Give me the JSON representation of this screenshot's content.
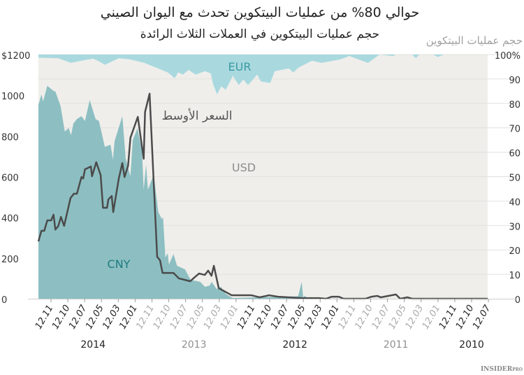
{
  "chart_data": {
    "type": "area",
    "title": "حوالي 80% من عمليات البيتكوين تحدث مع اليوان الصيني",
    "subtitle": "حجم عمليات البيتكوين في العملات الثلاث الرائدة",
    "right_axis_title": "حجم عمليات البيتكوين",
    "left_axis": {
      "range": [
        0,
        1200
      ],
      "ticks": [
        "0",
        "200",
        "400",
        "600",
        "800",
        "1000",
        "$1200"
      ],
      "tick_values": [
        0,
        200,
        400,
        600,
        800,
        1000,
        1200
      ]
    },
    "right_axis": {
      "range": [
        0,
        100
      ],
      "ticks": [
        "0",
        "10",
        "20",
        "30",
        "40",
        "50",
        "60",
        "70",
        "80",
        "90",
        "100%"
      ],
      "tick_values": [
        0,
        10,
        20,
        30,
        40,
        50,
        60,
        70,
        80,
        90,
        100
      ]
    },
    "grid": true,
    "x_direction": "newest on the left",
    "x_tick_labels": [
      "12.11",
      "12.10",
      "12.07",
      "12.05",
      "12.03",
      "12.01",
      "12.11",
      "12.10",
      "12.07",
      "12.05",
      "12.03",
      "12.01",
      "12.11",
      "12.10",
      "12.07",
      "12.05",
      "12.03",
      "12.01",
      "12.11",
      "12.10",
      "12.07",
      "12.05",
      "12.03",
      "12.01",
      "12.11",
      "12.10",
      "12.07"
    ],
    "year_groups": [
      {
        "label": "2014",
        "first_tick": 0,
        "last_tick": 5,
        "muted": false
      },
      {
        "label": "2013",
        "first_tick": 6,
        "last_tick": 11,
        "muted": true
      },
      {
        "label": "2012",
        "first_tick": 12,
        "last_tick": 17,
        "muted": false
      },
      {
        "label": "2011",
        "first_tick": 18,
        "last_tick": 23,
        "muted": true
      },
      {
        "label": "2010",
        "first_tick": 24,
        "last_tick": 26,
        "muted": false
      }
    ],
    "series": [
      {
        "name": "CNY",
        "kind": "area",
        "axis": "right",
        "color": "#8dbfc2",
        "label_color": "#1d7b80",
        "points": [
          [
            -0.75,
            79.4
          ],
          [
            -0.57,
            83.7
          ],
          [
            -0.47,
            80.8
          ],
          [
            -0.22,
            87.2
          ],
          [
            0.15,
            85.1
          ],
          [
            0.26,
            84.9
          ],
          [
            0.57,
            78.9
          ],
          [
            0.82,
            68.5
          ],
          [
            1.05,
            69.9
          ],
          [
            1.19,
            67.0
          ],
          [
            1.33,
            71.7
          ],
          [
            1.54,
            73.6
          ],
          [
            1.81,
            74.8
          ],
          [
            2.02,
            72.8
          ],
          [
            2.3,
            81.4
          ],
          [
            2.65,
            73.6
          ],
          [
            2.85,
            72.8
          ],
          [
            3.2,
            62.2
          ],
          [
            3.54,
            63.1
          ],
          [
            3.68,
            57.0
          ],
          [
            3.78,
            64.6
          ],
          [
            4.24,
            74.8
          ],
          [
            4.44,
            57.4
          ],
          [
            4.72,
            50.2
          ],
          [
            4.86,
            65.0
          ],
          [
            5.14,
            69.8
          ],
          [
            5.41,
            60.3
          ],
          [
            5.51,
            44.7
          ],
          [
            5.65,
            55.0
          ],
          [
            5.76,
            44.7
          ],
          [
            6.1,
            50.7
          ],
          [
            6.38,
            35.5
          ],
          [
            6.59,
            32.6
          ],
          [
            6.66,
            33.5
          ],
          [
            6.8,
            16.9
          ],
          [
            6.94,
            18.7
          ],
          [
            7.01,
            14.0
          ],
          [
            7.28,
            18.3
          ],
          [
            7.49,
            13.5
          ],
          [
            7.77,
            12.6
          ],
          [
            7.97,
            12.0
          ],
          [
            8.18,
            9.2
          ],
          [
            8.32,
            7.7
          ],
          [
            8.87,
            6.9
          ],
          [
            9.15,
            4.9
          ],
          [
            9.43,
            5.4
          ],
          [
            9.55,
            6.9
          ],
          [
            9.84,
            4.0
          ],
          [
            10.1,
            4.9
          ],
          [
            10.38,
            2.0
          ],
          [
            10.8,
            0.3
          ],
          [
            14.69,
            1.0
          ],
          [
            14.9,
            6.9
          ],
          [
            14.99,
            0.6
          ],
          [
            15.1,
            1.2
          ],
          [
            15.24,
            0
          ],
          [
            26,
            0
          ]
        ]
      },
      {
        "name": "EUR",
        "kind": "area",
        "axis": "right",
        "stacked_from": "top",
        "color": "#a9d9df",
        "label_color": "#3a9aa2",
        "points": [
          [
            -0.75,
            1.3
          ],
          [
            0.43,
            1.5
          ],
          [
            1.19,
            3.4
          ],
          [
            1.81,
            2.5
          ],
          [
            2.49,
            1.7
          ],
          [
            2.78,
            2.5
          ],
          [
            3.2,
            4.2
          ],
          [
            4.03,
            1.5
          ],
          [
            4.72,
            2.0
          ],
          [
            5.55,
            3.4
          ],
          [
            6.94,
            7.3
          ],
          [
            7.35,
            9.7
          ],
          [
            7.56,
            7.3
          ],
          [
            7.84,
            8.2
          ],
          [
            8.18,
            6.3
          ],
          [
            8.6,
            8.2
          ],
          [
            9.15,
            6.8
          ],
          [
            9.5,
            7.7
          ],
          [
            9.63,
            12.0
          ],
          [
            9.87,
            16.3
          ],
          [
            10.12,
            13.0
          ],
          [
            10.39,
            14.4
          ],
          [
            10.81,
            8.7
          ],
          [
            11.16,
            12.5
          ],
          [
            11.43,
            10.2
          ],
          [
            11.71,
            12.5
          ],
          [
            12.26,
            8.2
          ],
          [
            12.47,
            11.0
          ],
          [
            13.03,
            11.6
          ],
          [
            13.3,
            6.8
          ],
          [
            14.13,
            5.7
          ],
          [
            14.41,
            7.3
          ],
          [
            14.69,
            5.4
          ],
          [
            15.51,
            2.5
          ],
          [
            16.07,
            3.4
          ],
          [
            17.18,
            2.0
          ],
          [
            17.73,
            0.6
          ],
          [
            18.29,
            2.0
          ],
          [
            18.84,
            3.4
          ],
          [
            19.53,
            0
          ],
          [
            20.36,
            0.6
          ],
          [
            20.45,
            0
          ],
          [
            21.47,
            0
          ],
          [
            21.68,
            1.5
          ],
          [
            21.89,
            0
          ],
          [
            22.72,
            0
          ],
          [
            23.0,
            1.0
          ],
          [
            23.34,
            0
          ],
          [
            26,
            0
          ]
        ]
      },
      {
        "name": "USD",
        "kind": "area",
        "axis": "right",
        "fill": "remainder",
        "color": "#efeeeb",
        "label_color": "#8c8c8c"
      },
      {
        "name": "السعر الأوسط",
        "kind": "line",
        "axis": "left",
        "color": "#4b4b4b",
        "points": [
          [
            -0.75,
            282
          ],
          [
            -0.57,
            334
          ],
          [
            -0.4,
            334
          ],
          [
            -0.22,
            385
          ],
          [
            0.01,
            385
          ],
          [
            0.15,
            413
          ],
          [
            0.26,
            340
          ],
          [
            0.43,
            357
          ],
          [
            0.59,
            402
          ],
          [
            0.78,
            358
          ],
          [
            1.16,
            495
          ],
          [
            1.36,
            516
          ],
          [
            1.54,
            516
          ],
          [
            1.81,
            598
          ],
          [
            1.91,
            591
          ],
          [
            2.02,
            636
          ],
          [
            2.37,
            650
          ],
          [
            2.44,
            602
          ],
          [
            2.69,
            671
          ],
          [
            2.95,
            608
          ],
          [
            3.09,
            447
          ],
          [
            3.33,
            447
          ],
          [
            3.41,
            488
          ],
          [
            3.61,
            505
          ],
          [
            3.7,
            426
          ],
          [
            4.03,
            591
          ],
          [
            4.24,
            667
          ],
          [
            4.37,
            598
          ],
          [
            4.58,
            653
          ],
          [
            4.72,
            791
          ],
          [
            5.16,
            894
          ],
          [
            5.51,
            688
          ],
          [
            5.59,
            918
          ],
          [
            5.86,
            1008
          ],
          [
            6.31,
            206
          ],
          [
            6.48,
            189
          ],
          [
            6.63,
            127
          ],
          [
            7.28,
            127
          ],
          [
            7.6,
            100
          ],
          [
            8.28,
            86
          ],
          [
            8.46,
            100
          ],
          [
            8.8,
            124
          ],
          [
            9.14,
            117
          ],
          [
            9.34,
            138
          ],
          [
            9.54,
            113
          ],
          [
            9.68,
            162
          ],
          [
            9.97,
            52
          ],
          [
            10.74,
            17
          ],
          [
            11.92,
            17
          ],
          [
            12.4,
            7
          ],
          [
            12.96,
            17
          ],
          [
            13.5,
            10
          ],
          [
            14.95,
            3
          ],
          [
            15.93,
            3
          ],
          [
            16.35,
            0
          ],
          [
            16.69,
            10
          ],
          [
            17.11,
            10
          ],
          [
            17.39,
            0
          ],
          [
            18.69,
            0
          ],
          [
            19.05,
            10
          ],
          [
            19.39,
            14
          ],
          [
            19.6,
            7
          ],
          [
            20.5,
            21
          ],
          [
            20.76,
            0
          ],
          [
            21.18,
            7
          ],
          [
            21.47,
            0
          ],
          [
            26,
            0
          ]
        ]
      }
    ]
  },
  "branding": {
    "logo": "INSIDER PRO"
  }
}
